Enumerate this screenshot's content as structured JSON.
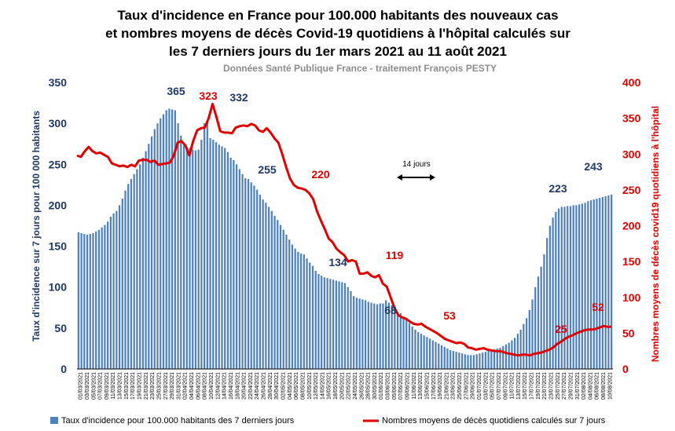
{
  "chart_data": {
    "type": "bar+line",
    "title_lines": [
      "Taux d'incidence en France pour 100.000 habitants des nouveaux cas",
      "et nombres moyens de décès Covid-19 quotidiens à l'hôpital calculés sur",
      "les 7 derniers jours du 1er mars 2021 au 11 août 2021"
    ],
    "subtitle": "Données Santé Publique France - traitement François PESTY",
    "ylabel_left": "Taux d'incidence sur 7 jours pour 100 000 habitants",
    "ylabel_right": "Nombres moyens de décès covid19 quotidiens à l'hôpital",
    "ylim_left": [
      0,
      350
    ],
    "yticks_left": [
      0,
      50,
      100,
      150,
      200,
      250,
      300,
      350
    ],
    "ylim_right": [
      0,
      400
    ],
    "yticks_right": [
      0,
      50,
      100,
      150,
      200,
      250,
      300,
      350,
      400
    ],
    "x_start_date": "2021-03-01",
    "x_end_date": "2021-08-11",
    "x_tick_labels": [
      "01/03/2021",
      "03/03/2021",
      "05/03/2021",
      "07/03/2021",
      "09/03/2021",
      "11/03/2021",
      "13/03/2021",
      "15/03/2021",
      "17/03/2021",
      "19/03/2021",
      "21/03/2021",
      "23/03/2021",
      "25/03/2021",
      "27/03/2021",
      "29/03/2021",
      "31/03/2021",
      "02/04/2021",
      "04/04/2021",
      "06/04/2021",
      "08/04/2021",
      "10/04/2021",
      "12/04/2021",
      "14/04/2021",
      "16/04/2021",
      "18/04/2021",
      "20/04/2021",
      "22/04/2021",
      "24/04/2021",
      "26/04/2021",
      "28/04/2021",
      "30/04/2021",
      "02/05/2021",
      "04/05/2021",
      "06/05/2021",
      "08/05/2021",
      "10/05/2021",
      "12/05/2021",
      "14/05/2021",
      "16/05/2021",
      "18/05/2021",
      "20/05/2021",
      "22/05/2021",
      "24/05/2021",
      "26/05/2021",
      "28/05/2021",
      "30/05/2021",
      "01/06/2021",
      "03/06/2021",
      "05/06/2021",
      "07/06/2021",
      "09/06/2021",
      "11/06/2021",
      "13/06/2021",
      "15/06/2021",
      "17/06/2021",
      "19/06/2021",
      "21/06/2021",
      "23/06/2021",
      "25/06/2021",
      "27/06/2021",
      "29/06/2021",
      "01/07/2021",
      "03/07/2021",
      "05/07/2021",
      "07/07/2021",
      "09/07/2021",
      "11/07/2021",
      "13/07/2021",
      "15/07/2021",
      "17/07/2021",
      "19/07/2021",
      "21/07/2021",
      "23/07/2021",
      "25/07/2021",
      "27/07/2021",
      "29/07/2021",
      "31/07/2021",
      "02/08/2021",
      "04/08/2021",
      "06/08/2021",
      "08/08/2021",
      "10/08/2021"
    ],
    "incidence_series": {
      "name": "Taux d'incidence  pour 100.000 habitants des 7 derniers jours",
      "color": "#4f81bd",
      "axis": "left",
      "values": [
        167,
        166,
        165,
        164,
        165,
        166,
        168,
        170,
        173,
        176,
        180,
        186,
        190,
        193,
        200,
        208,
        218,
        226,
        232,
        238,
        244,
        250,
        258,
        266,
        275,
        284,
        293,
        300,
        306,
        311,
        316,
        318,
        317,
        316,
        300,
        285,
        274,
        271,
        270,
        268,
        267,
        268,
        280,
        300,
        302,
        282,
        280,
        277,
        274,
        272,
        270,
        265,
        258,
        255,
        250,
        244,
        238,
        233,
        232,
        228,
        224,
        219,
        213,
        207,
        203,
        198,
        193,
        187,
        182,
        176,
        170,
        164,
        158,
        152,
        147,
        143,
        141,
        140,
        135,
        130,
        126,
        120,
        116,
        114,
        112,
        111,
        110,
        109,
        108,
        107,
        106,
        105,
        100,
        95,
        89,
        87,
        86,
        85,
        84,
        82,
        81,
        80,
        79,
        80,
        80,
        84,
        81,
        78,
        74,
        69,
        68,
        64,
        60,
        56,
        52,
        48,
        45,
        43,
        41,
        39,
        37,
        35,
        33,
        31,
        29,
        27,
        25,
        23,
        22,
        21,
        20,
        19,
        18,
        17,
        17,
        17,
        18,
        19,
        20,
        21,
        22,
        23,
        24,
        25,
        26,
        28,
        30,
        32,
        35,
        38,
        43,
        48,
        55,
        62,
        72,
        85,
        100,
        113,
        125,
        140,
        160,
        175,
        185,
        192,
        196,
        198,
        198,
        199,
        199,
        200,
        200,
        201,
        202,
        203,
        205,
        206,
        207,
        208,
        209,
        210,
        211,
        212,
        213
      ]
    },
    "deaths_series": {
      "name": "Nombres moyens de décès quotidiens calculés sur 7 jours",
      "color": "#e00000",
      "axis": "right",
      "points": [
        [
          0,
          298
        ],
        [
          2,
          296
        ],
        [
          4,
          304
        ],
        [
          6,
          310
        ],
        [
          8,
          304
        ],
        [
          10,
          301
        ],
        [
          12,
          302
        ],
        [
          14,
          299
        ],
        [
          16,
          296
        ],
        [
          18,
          287
        ],
        [
          20,
          285
        ],
        [
          22,
          283
        ],
        [
          24,
          284
        ],
        [
          26,
          282
        ],
        [
          28,
          285
        ],
        [
          30,
          283
        ],
        [
          32,
          291
        ],
        [
          34,
          292
        ],
        [
          36,
          292
        ],
        [
          38,
          289
        ],
        [
          40,
          291
        ],
        [
          42,
          285
        ],
        [
          44,
          286
        ],
        [
          46,
          287
        ],
        [
          48,
          288
        ],
        [
          50,
          298
        ],
        [
          52,
          316
        ],
        [
          54,
          318
        ],
        [
          56,
          312
        ],
        [
          58,
          298
        ],
        [
          60,
          318
        ],
        [
          62,
          333
        ],
        [
          64,
          336
        ],
        [
          66,
          337
        ],
        [
          68,
          350
        ],
        [
          70,
          370
        ],
        [
          72,
          352
        ],
        [
          74,
          332
        ],
        [
          76,
          330
        ],
        [
          78,
          330
        ],
        [
          80,
          329
        ],
        [
          82,
          337
        ],
        [
          84,
          339
        ],
        [
          86,
          340
        ],
        [
          88,
          339
        ],
        [
          90,
          342
        ],
        [
          92,
          340
        ],
        [
          94,
          333
        ],
        [
          96,
          331
        ],
        [
          98,
          336
        ],
        [
          100,
          330
        ],
        [
          102,
          322
        ],
        [
          104,
          316
        ],
        [
          106,
          300
        ],
        [
          108,
          282
        ],
        [
          110,
          266
        ],
        [
          112,
          257
        ],
        [
          114,
          253
        ],
        [
          116,
          252
        ],
        [
          118,
          250
        ],
        [
          120,
          245
        ],
        [
          122,
          237
        ],
        [
          124,
          220
        ],
        [
          126,
          207
        ],
        [
          128,
          195
        ],
        [
          130,
          182
        ],
        [
          132,
          177
        ],
        [
          134,
          168
        ],
        [
          136,
          163
        ],
        [
          138,
          159
        ],
        [
          140,
          150
        ],
        [
          142,
          152
        ],
        [
          144,
          150
        ],
        [
          146,
          133
        ],
        [
          148,
          133
        ],
        [
          150,
          135
        ],
        [
          152,
          130
        ],
        [
          154,
          128
        ],
        [
          156,
          131
        ],
        [
          158,
          119
        ],
        [
          160,
          115
        ],
        [
          162,
          100
        ],
        [
          164,
          85
        ],
        [
          166,
          75
        ],
        [
          168,
          72
        ],
        [
          170,
          70
        ],
        [
          172,
          66
        ],
        [
          174,
          63
        ],
        [
          176,
          62
        ],
        [
          178,
          63
        ],
        [
          180,
          59
        ],
        [
          182,
          56
        ],
        [
          184,
          53
        ],
        [
          186,
          50
        ],
        [
          188,
          46
        ],
        [
          190,
          42
        ],
        [
          192,
          40
        ],
        [
          194,
          38
        ],
        [
          196,
          36
        ],
        [
          198,
          37
        ],
        [
          200,
          35
        ],
        [
          202,
          30
        ],
        [
          204,
          29
        ],
        [
          206,
          27
        ],
        [
          208,
          28
        ],
        [
          210,
          29
        ],
        [
          212,
          27
        ],
        [
          214,
          26
        ],
        [
          216,
          25
        ],
        [
          218,
          25
        ],
        [
          220,
          24
        ],
        [
          222,
          22
        ],
        [
          224,
          21
        ],
        [
          226,
          20
        ],
        [
          228,
          19
        ],
        [
          230,
          20
        ],
        [
          232,
          20
        ],
        [
          234,
          19
        ],
        [
          236,
          21
        ],
        [
          238,
          22
        ],
        [
          240,
          23
        ],
        [
          242,
          25
        ],
        [
          244,
          27
        ],
        [
          246,
          30
        ],
        [
          248,
          35
        ],
        [
          250,
          38
        ],
        [
          252,
          42
        ],
        [
          254,
          45
        ],
        [
          256,
          47
        ],
        [
          258,
          50
        ],
        [
          260,
          52
        ],
        [
          262,
          54
        ],
        [
          264,
          55
        ],
        [
          266,
          55
        ],
        [
          268,
          56
        ],
        [
          270,
          58
        ],
        [
          272,
          60
        ],
        [
          274,
          59
        ],
        [
          276,
          59
        ]
      ]
    },
    "annotations_left": [
      {
        "label": "365",
        "x": 31
      },
      {
        "label": "332",
        "x": 45
      },
      {
        "label": "255",
        "x": 53
      },
      {
        "label": "134",
        "x": 85
      },
      {
        "label": "68",
        "x": 109
      },
      {
        "label": "223",
        "x": 166
      },
      {
        "label": "243",
        "x": 182
      }
    ],
    "annotations_right": [
      {
        "label": "323",
        "x": 35
      },
      {
        "label": "220",
        "x": 62
      },
      {
        "label": "119",
        "x": 79
      },
      {
        "label": "53",
        "x": 94
      },
      {
        "label": "25",
        "x": 113
      },
      {
        "label": "52",
        "x": 131
      }
    ],
    "note_label": "14 jours",
    "legend": [
      {
        "label": "Taux d'incidence  pour 100.000 habitants des 7 derniers jours",
        "kind": "bar",
        "color": "#4f81bd"
      },
      {
        "label": "Nombres moyens de décès quotidiens calculés sur 7 jours",
        "kind": "line",
        "color": "#e00000"
      }
    ]
  }
}
